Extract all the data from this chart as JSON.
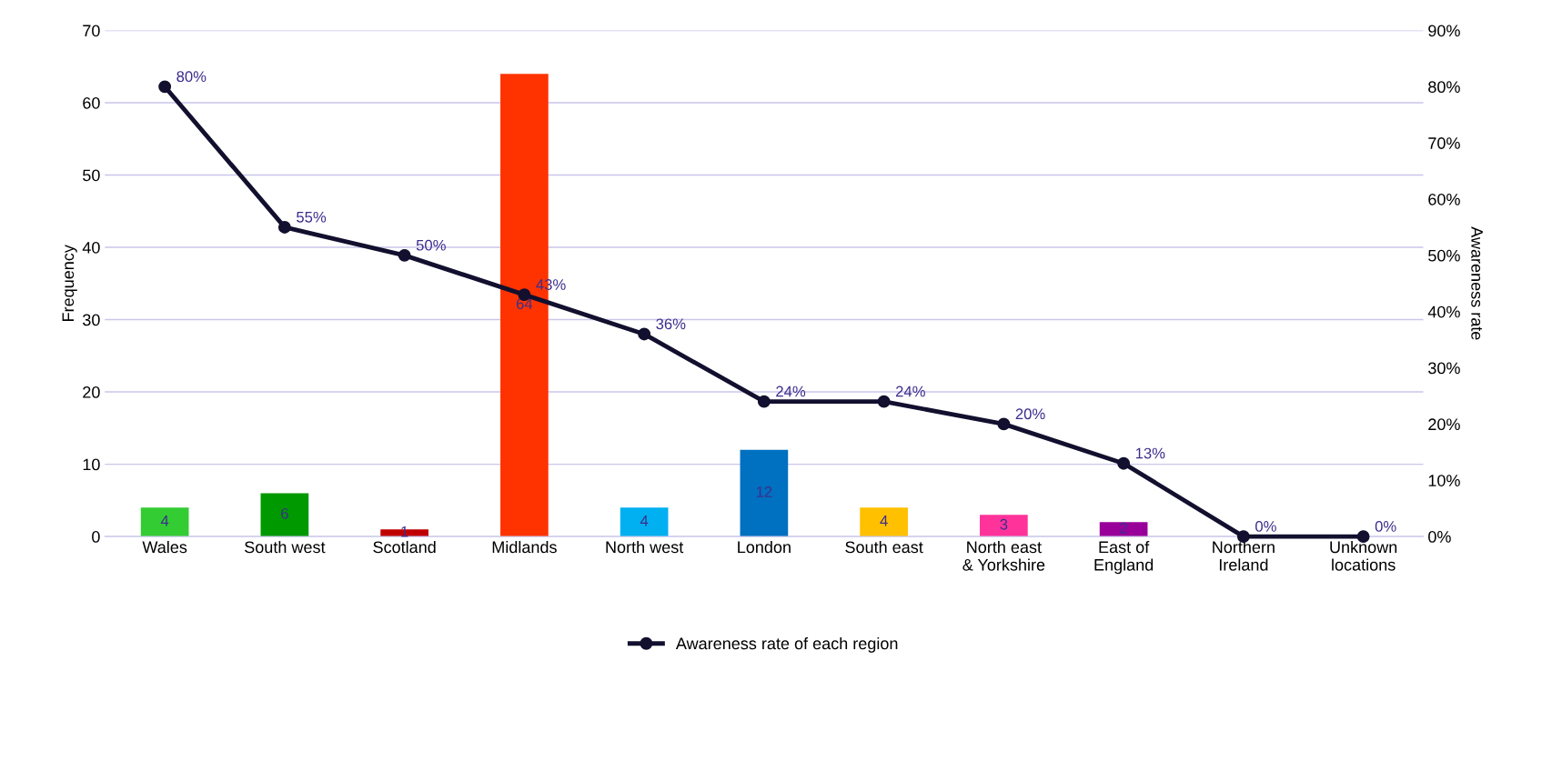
{
  "chart_data": {
    "type": "bar",
    "categories": [
      "Wales",
      "South west",
      "Scotland",
      "Midlands",
      "North west",
      "London",
      "South east",
      "North east\n& Yorkshire",
      "East of\nEngland",
      "Northern\nIreland",
      "Unknown\nlocations"
    ],
    "ylabel": "Frequency",
    "y2label": "Awareness rate",
    "ylim": [
      0,
      70
    ],
    "yticks": [
      0,
      10,
      20,
      30,
      40,
      50,
      60,
      70
    ],
    "y2lim": [
      0,
      90
    ],
    "y2ticks": [
      {
        "value": 0,
        "label": "0%"
      },
      {
        "value": 10,
        "label": "10%"
      },
      {
        "value": 20,
        "label": "20%"
      },
      {
        "value": 30,
        "label": "30%"
      },
      {
        "value": 40,
        "label": "40%"
      },
      {
        "value": 50,
        "label": "50%"
      },
      {
        "value": 60,
        "label": "60%"
      },
      {
        "value": 70,
        "label": "70%"
      },
      {
        "value": 80,
        "label": "80%"
      },
      {
        "value": 90,
        "label": "90%"
      }
    ],
    "grid": "y",
    "legend": "bottom",
    "series": [
      {
        "colors": [
          "#33cc33",
          "#009900",
          "#c00000",
          "#ff3300",
          "#00b0f0",
          "#0070c0",
          "#ffc000",
          "#ff3399",
          "#990099",
          "#7f7f7f",
          "#7f7f7f"
        ],
        "values": [
          4,
          6,
          1,
          64,
          4,
          12,
          4,
          3,
          2,
          0,
          0
        ],
        "value_labels": [
          "4",
          "6",
          "1",
          "64",
          "4",
          "12",
          "4",
          "3",
          "2",
          null,
          null
        ]
      },
      {
        "type": "line",
        "axis": "y2",
        "name": "Awareness rate of each region",
        "color": "#12102e",
        "marker": "circle",
        "values": [
          80,
          55,
          50,
          43,
          36,
          24,
          24,
          20,
          13,
          0,
          0
        ],
        "value_labels": [
          "80%",
          "55%",
          "50%",
          "43%",
          "36%",
          "24%",
          "24%",
          "20%",
          "13%",
          "0%",
          "0%"
        ]
      }
    ]
  }
}
